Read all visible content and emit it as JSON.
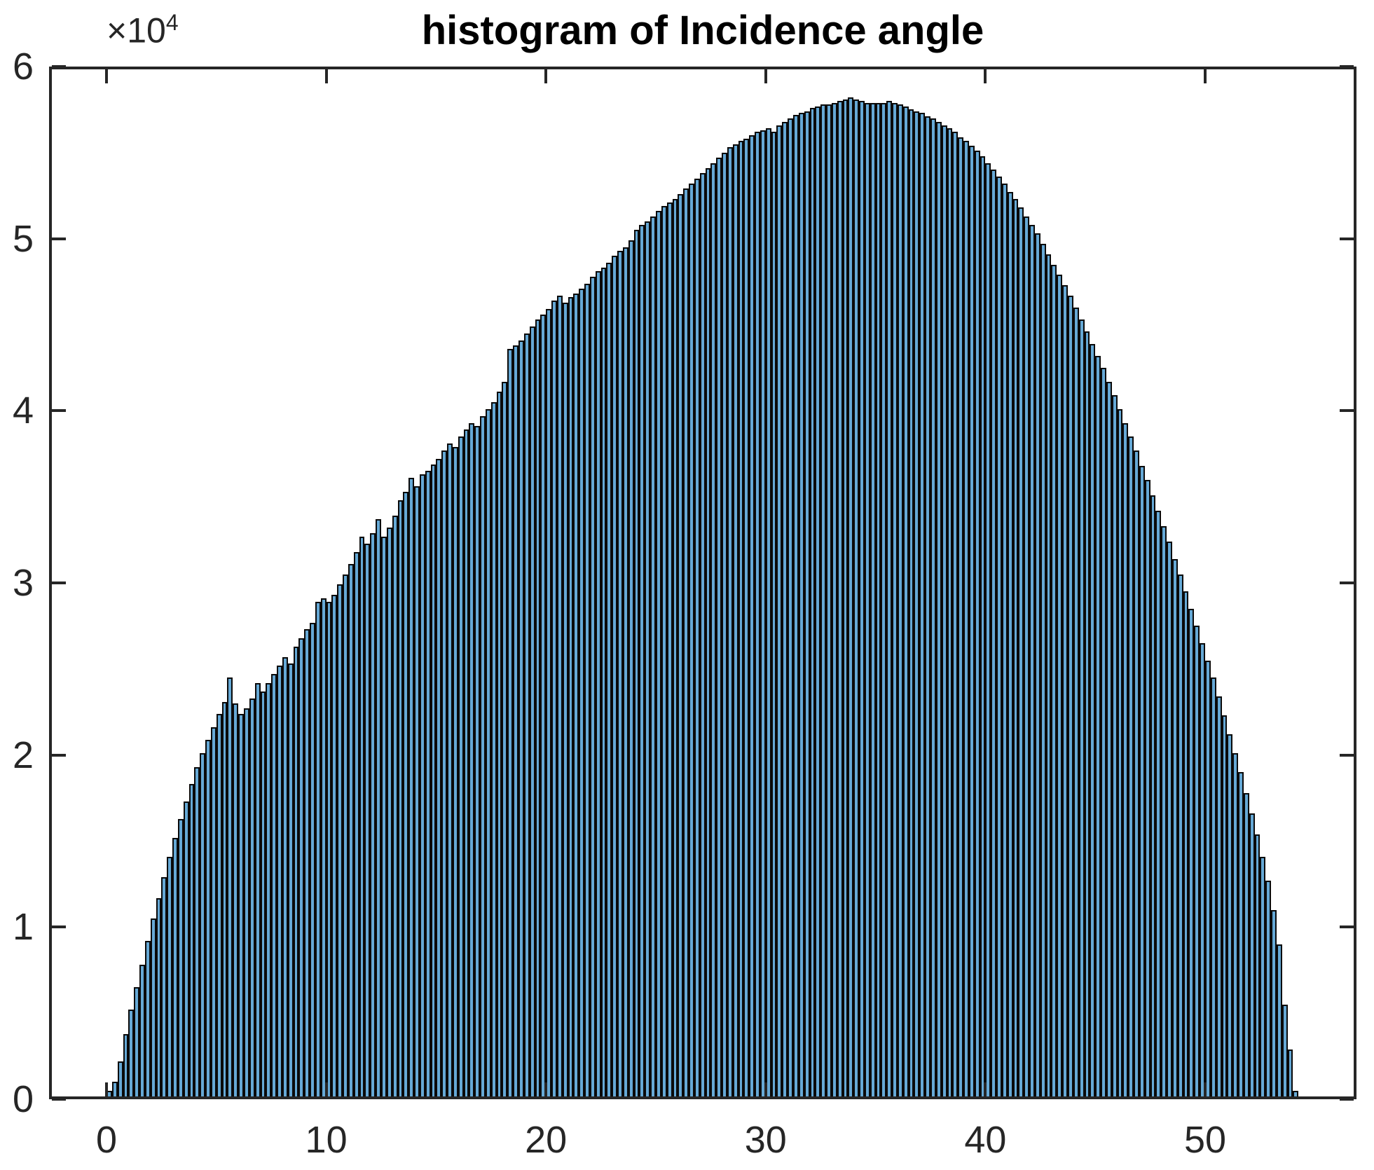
{
  "figure": {
    "title": "histogram of Incidence angle",
    "background_color": "#ffffff",
    "bar_fill_color": "#66a9d6",
    "bar_edge_color": "#0a0a0a",
    "axes_color": "#262626",
    "tick_label_color": "#262626"
  },
  "axes": {
    "y_exponent_base": "×10",
    "y_exponent_power": "4",
    "x_ticks": [
      {
        "value": 0,
        "label": "0"
      },
      {
        "value": 10,
        "label": "10"
      },
      {
        "value": 20,
        "label": "20"
      },
      {
        "value": 30,
        "label": "30"
      },
      {
        "value": 40,
        "label": "40"
      },
      {
        "value": 50,
        "label": "50"
      }
    ],
    "y_ticks": [
      {
        "value": 0,
        "label": "0"
      },
      {
        "value": 10000,
        "label": "1"
      },
      {
        "value": 20000,
        "label": "2"
      },
      {
        "value": 30000,
        "label": "3"
      },
      {
        "value": 40000,
        "label": "4"
      },
      {
        "value": 50000,
        "label": "5"
      },
      {
        "value": 60000,
        "label": "6"
      }
    ]
  },
  "chart_data": {
    "type": "bar",
    "subtype": "histogram",
    "title": "histogram of Incidence angle",
    "xlabel": "",
    "ylabel": "",
    "legend": null,
    "grid": false,
    "xlim": [
      -2.6,
      56.9
    ],
    "ylim": [
      0,
      60000
    ],
    "y_tick_scale": 10000,
    "bin_start": 0,
    "bin_width": 0.25,
    "values": [
      500,
      1000,
      2200,
      3800,
      5200,
      6500,
      7800,
      9200,
      10500,
      11700,
      12900,
      14100,
      15200,
      16300,
      17300,
      18300,
      19300,
      20100,
      20900,
      21600,
      22400,
      23100,
      24500,
      23000,
      22400,
      22700,
      23300,
      24200,
      23700,
      24200,
      24700,
      25200,
      25700,
      25300,
      26300,
      26800,
      27300,
      27700,
      28900,
      29100,
      28900,
      29300,
      29900,
      30500,
      31100,
      31800,
      32700,
      32300,
      32900,
      33700,
      32700,
      33200,
      33900,
      34800,
      35300,
      36100,
      35600,
      36300,
      36500,
      36900,
      37200,
      37700,
      38100,
      37900,
      38500,
      38900,
      39300,
      39100,
      39700,
      40100,
      40500,
      41100,
      41700,
      43600,
      43800,
      44100,
      44500,
      44900,
      45300,
      45600,
      45900,
      46400,
      46700,
      46300,
      46600,
      46800,
      47100,
      47400,
      47800,
      48100,
      48300,
      48600,
      49000,
      49300,
      49500,
      49900,
      50500,
      50800,
      51000,
      51300,
      51600,
      51900,
      52100,
      52300,
      52600,
      52900,
      53200,
      53500,
      53800,
      54100,
      54400,
      54700,
      55000,
      55300,
      55500,
      55700,
      55800,
      56000,
      56200,
      56300,
      56400,
      56200,
      56600,
      56800,
      57000,
      57200,
      57300,
      57400,
      57600,
      57700,
      57800,
      57800,
      57900,
      58000,
      58100,
      58200,
      58100,
      58000,
      57900,
      57900,
      57900,
      57900,
      58000,
      57900,
      57800,
      57700,
      57500,
      57400,
      57300,
      57100,
      57000,
      56800,
      56600,
      56400,
      56200,
      55900,
      55700,
      55400,
      55100,
      54800,
      54400,
      54000,
      53600,
      53200,
      52700,
      52300,
      51800,
      51300,
      50800,
      50300,
      49700,
      49100,
      48500,
      47900,
      47300,
      46700,
      46000,
      45300,
      44600,
      43900,
      43200,
      42500,
      41700,
      40900,
      40100,
      39300,
      38500,
      37700,
      36800,
      36000,
      35100,
      34200,
      33300,
      32400,
      31400,
      30500,
      29500,
      28500,
      27500,
      26500,
      25500,
      24500,
      23400,
      22300,
      21200,
      20100,
      19000,
      17800,
      16600,
      15400,
      14100,
      12700,
      11000,
      9000,
      5500,
      2900,
      500
    ]
  }
}
